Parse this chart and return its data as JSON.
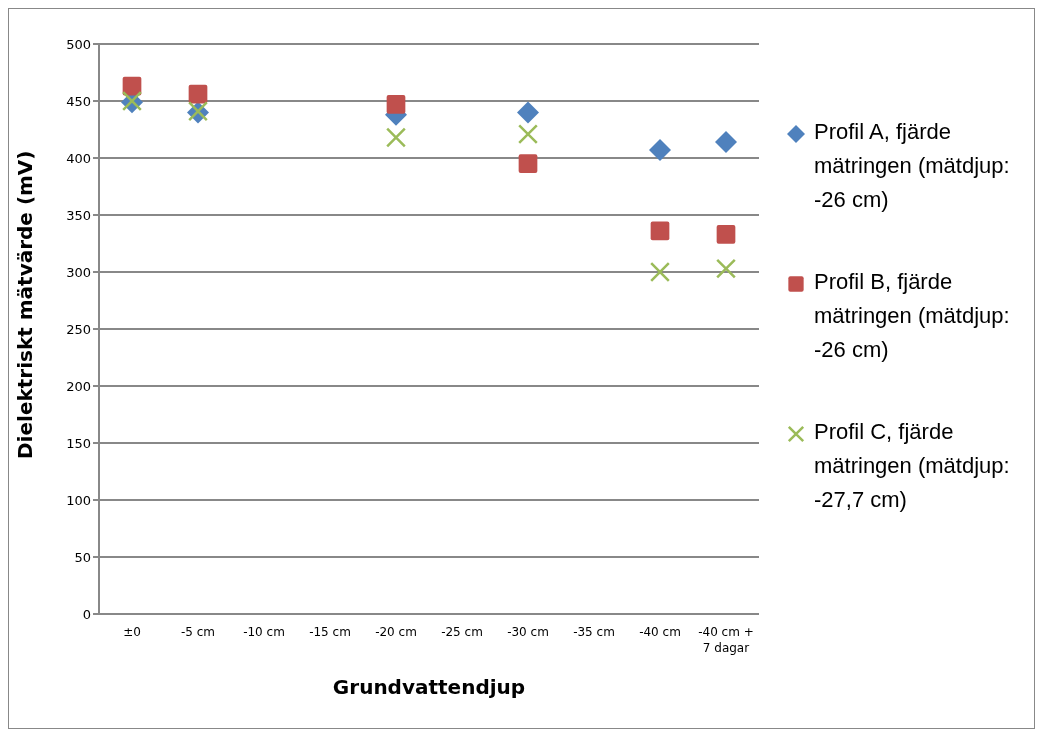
{
  "chart_data": {
    "type": "scatter",
    "xlabel": "Grundvattendjup",
    "ylabel": "Dielektriskt mätvärde (mV)",
    "categories": [
      "±0",
      "-5 cm",
      "-10 cm",
      "-15 cm",
      "-20 cm",
      "-25 cm",
      "-30 cm",
      "-35 cm",
      "-40 cm",
      "-40 cm + 7 dagar"
    ],
    "series": [
      {
        "name": "Profil A, fjärde mätringen (mätdjup: -26 cm)",
        "color": "#4f81bd",
        "marker": "diamond",
        "values": [
          449,
          440,
          null,
          null,
          438,
          null,
          440,
          null,
          407,
          414
        ]
      },
      {
        "name": "Profil B, fjärde mätringen (mätdjup: -26 cm)",
        "color": "#c0504d",
        "marker": "square",
        "values": [
          463,
          456,
          null,
          null,
          447,
          null,
          395,
          null,
          336,
          333
        ]
      },
      {
        "name": "Profil C, fjärde mätringen (mätdjup: -27,7 cm)",
        "color": "#9bbb59",
        "marker": "cross",
        "values": [
          450,
          441,
          null,
          null,
          418,
          null,
          421,
          null,
          300,
          303
        ]
      }
    ],
    "ylim": [
      0,
      500
    ],
    "yticks": [
      0,
      50,
      100,
      150,
      200,
      250,
      300,
      350,
      400,
      450,
      500
    ],
    "grid": "y",
    "legend": "right"
  }
}
